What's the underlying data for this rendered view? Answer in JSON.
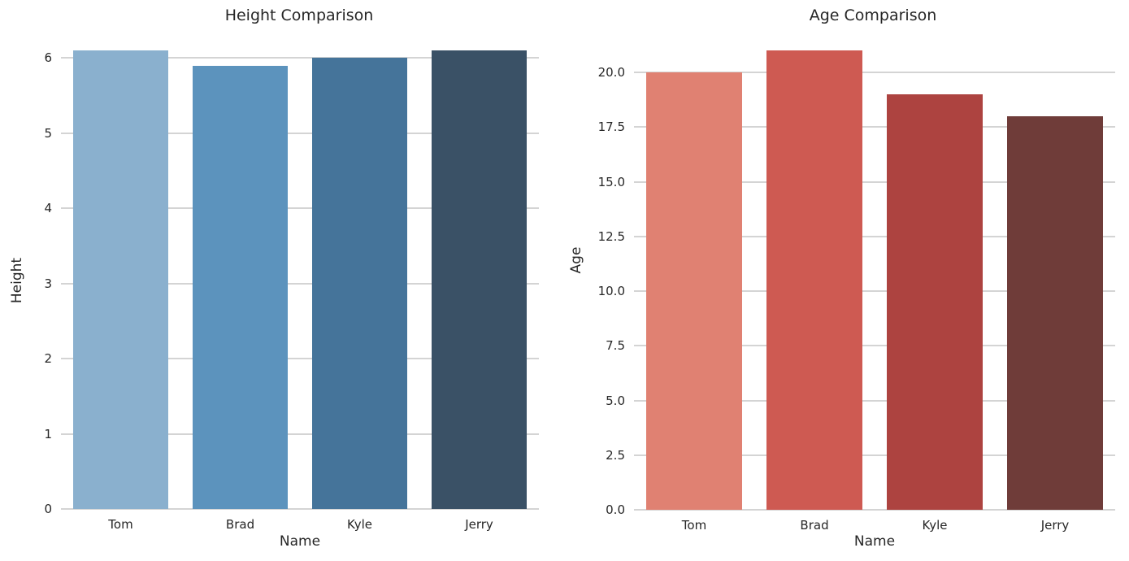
{
  "figure": {
    "background": "#ffffff",
    "grid_color": "#d4d4d4",
    "text_color": "#262626"
  },
  "chart_data": [
    {
      "type": "bar",
      "title": "Height Comparison",
      "xlabel": "Name",
      "ylabel": "Height",
      "categories": [
        "Tom",
        "Brad",
        "Kyle",
        "Jerry"
      ],
      "values": [
        6.1,
        5.9,
        6.0,
        6.1
      ],
      "ylim": [
        0,
        6.405
      ],
      "ytick_labels": [
        "0",
        "1",
        "2",
        "3",
        "4",
        "5",
        "6"
      ],
      "ytick_values": [
        0,
        1,
        2,
        3,
        4,
        5,
        6
      ],
      "grid": "horizontal",
      "legend": "none",
      "bar_colors": [
        "#8ab0ce",
        "#5c93bd",
        "#45749a",
        "#3a5166"
      ]
    },
    {
      "type": "bar",
      "title": "Age Comparison",
      "xlabel": "Name",
      "ylabel": "Age",
      "categories": [
        "Tom",
        "Brad",
        "Kyle",
        "Jerry"
      ],
      "values": [
        20,
        21,
        19,
        18
      ],
      "ylim": [
        0,
        22.05
      ],
      "ytick_labels": [
        "0.0",
        "2.5",
        "5.0",
        "7.5",
        "10.0",
        "12.5",
        "15.0",
        "17.5",
        "20.0"
      ],
      "ytick_values": [
        0,
        2.5,
        5,
        7.5,
        10,
        12.5,
        15,
        17.5,
        20
      ],
      "grid": "horizontal",
      "legend": "none",
      "bar_colors": [
        "#e08172",
        "#ce5a52",
        "#ad4340",
        "#6f3c39"
      ]
    }
  ]
}
